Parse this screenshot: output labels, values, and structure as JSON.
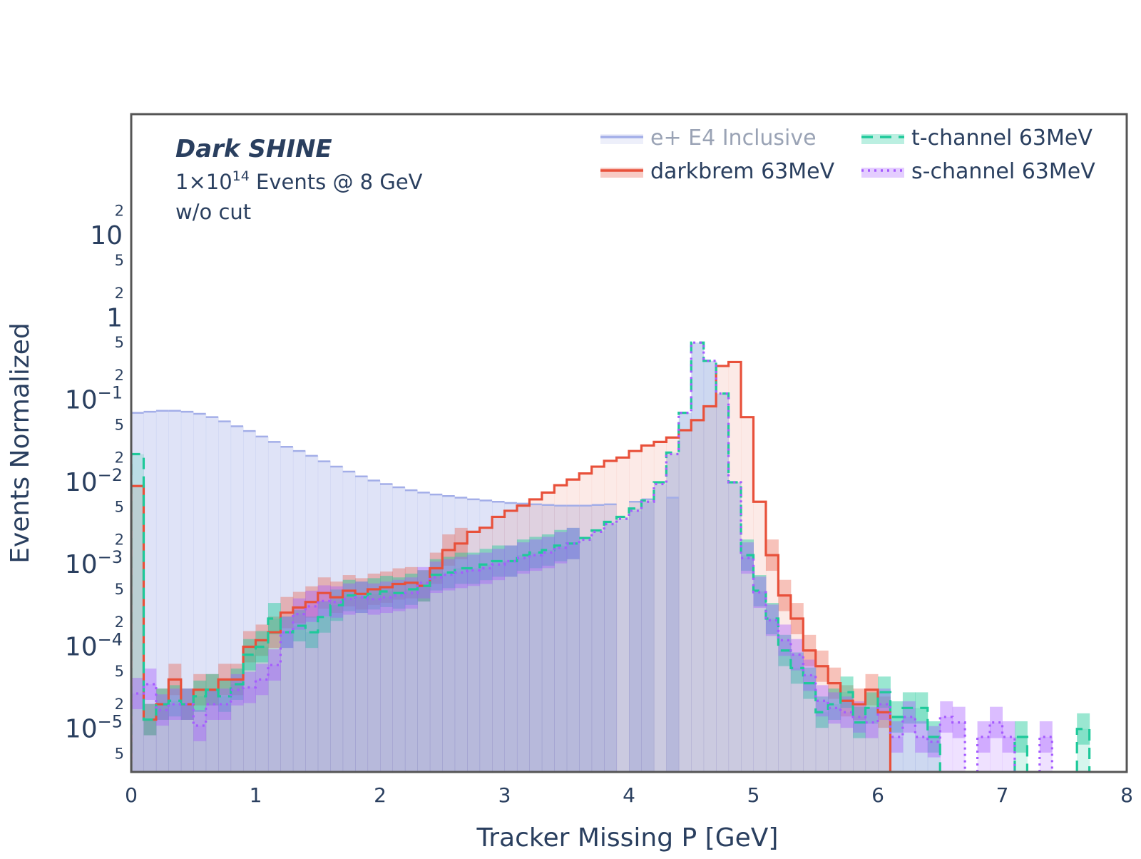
{
  "chart_data": {
    "type": "histogram",
    "xlabel": "Tracker Missing P [GeV]",
    "ylabel": "Events Normalized",
    "xlim": [
      0,
      8
    ],
    "ylim": [
      3e-06,
      300
    ],
    "yscale": "log",
    "bin_width": 0.1,
    "x_ticks": [
      "0",
      "1",
      "2",
      "3",
      "4",
      "5",
      "6",
      "7",
      "8"
    ],
    "y_ticks": [
      {
        "v": 1e-05,
        "label": "10",
        "exp": "−5"
      },
      {
        "v": 0.0001,
        "label": "10",
        "exp": "−4"
      },
      {
        "v": 0.001,
        "label": "10",
        "exp": "−3"
      },
      {
        "v": 0.01,
        "label": "10",
        "exp": "−2"
      },
      {
        "v": 0.1,
        "label": "10",
        "exp": "−1"
      },
      {
        "v": 1,
        "label": "1",
        "exp": ""
      },
      {
        "v": 10,
        "label": "10",
        "exp": ""
      }
    ],
    "y_minor_ticks": [
      {
        "v": 5e-06,
        "label": "5"
      },
      {
        "v": 2e-05,
        "label": "2"
      },
      {
        "v": 5e-05,
        "label": "5"
      },
      {
        "v": 0.0002,
        "label": "2"
      },
      {
        "v": 0.0005,
        "label": "5"
      },
      {
        "v": 0.002,
        "label": "2"
      },
      {
        "v": 0.005,
        "label": "5"
      },
      {
        "v": 0.02,
        "label": "2"
      },
      {
        "v": 0.05,
        "label": "5"
      },
      {
        "v": 0.2,
        "label": "2"
      },
      {
        "v": 0.5,
        "label": "5"
      },
      {
        "v": 2,
        "label": "2"
      },
      {
        "v": 5,
        "label": "5"
      },
      {
        "v": 20,
        "label": "2"
      }
    ],
    "annotation": {
      "title": "Dark SHINE",
      "line1_prefix": "1×10",
      "line1_exp": "14",
      "line1_suffix": " Events @ 8 GeV",
      "line2": "w/o cut"
    },
    "legend_position": "top-right",
    "series": [
      {
        "name": "e+ E4 Inclusive",
        "color": "#a3aee8",
        "style": "solid",
        "values": [
          0.07,
          0.072,
          0.074,
          0.074,
          0.072,
          0.068,
          0.062,
          0.055,
          0.048,
          0.042,
          0.036,
          0.031,
          0.027,
          0.024,
          0.021,
          0.018,
          0.0155,
          0.0135,
          0.0118,
          0.0105,
          0.0095,
          0.0087,
          0.008,
          0.0075,
          0.0071,
          0.0068,
          0.0065,
          0.0062,
          0.006,
          0.0058,
          0.0056,
          0.0055,
          0.0054,
          0.0053,
          0.0052,
          0.0052,
          0.0052,
          0.0053,
          0.0054,
          null,
          0.0058,
          0.0062,
          null,
          0.0065,
          null,
          null,
          null,
          null,
          null,
          null,
          null,
          null,
          null,
          null,
          null,
          null,
          null,
          null,
          null,
          null,
          null,
          null,
          null,
          null,
          null,
          null,
          null,
          null,
          null,
          null,
          null,
          null,
          null,
          null,
          null,
          null,
          null,
          null,
          null,
          null
        ]
      },
      {
        "name": "darkbrem 63MeV",
        "color": "#e8503a",
        "style": "solid",
        "values": [
          0.009,
          1.3e-05,
          2e-05,
          4e-05,
          2e-05,
          3e-05,
          3e-05,
          4e-05,
          4e-05,
          0.0001,
          0.00012,
          0.00015,
          0.00026,
          0.0003,
          0.00035,
          0.00045,
          0.0004,
          0.00048,
          0.00044,
          0.0005,
          0.00053,
          0.00058,
          0.0006,
          0.00055,
          0.0009,
          0.0015,
          0.0018,
          0.0025,
          0.0028,
          0.0038,
          0.0045,
          0.0052,
          0.0062,
          0.0075,
          0.0092,
          0.0108,
          0.0128,
          0.0155,
          0.0182,
          0.02,
          0.024,
          0.028,
          0.031,
          0.035,
          0.043,
          0.057,
          0.084,
          0.26,
          0.29,
          0.062,
          0.0058,
          0.0013,
          0.00042,
          0.00022,
          9e-05,
          5.8e-05,
          3.6e-05,
          2.2e-05,
          2e-05,
          3e-05,
          1.6e-05,
          null,
          null,
          null,
          null,
          null,
          null,
          null,
          null,
          null,
          null,
          null,
          null,
          null,
          null,
          null,
          null,
          null,
          null,
          null
        ]
      },
      {
        "name": "t-channel 63MeV",
        "color": "#1ec99a",
        "style": "dashed",
        "values": [
          0.022,
          1.3e-05,
          2e-05,
          2.2e-05,
          2e-05,
          2.5e-05,
          3e-05,
          2.5e-05,
          3.5e-05,
          8e-05,
          0.0001,
          0.00022,
          0.00015,
          0.00018,
          0.00015,
          0.00023,
          0.00032,
          0.00042,
          0.0004,
          0.00044,
          0.00047,
          0.00045,
          0.0005,
          0.00055,
          0.00075,
          0.0008,
          0.0009,
          0.0009,
          0.001,
          0.0011,
          0.0011,
          0.0013,
          0.0014,
          0.0015,
          0.0017,
          0.0018,
          0.0021,
          0.0026,
          0.0033,
          0.0038,
          0.0048,
          0.006,
          0.01,
          0.023,
          0.07,
          0.5,
          0.3,
          0.12,
          0.01,
          0.0013,
          0.00048,
          0.00022,
          9e-05,
          5.5e-05,
          3.6e-05,
          1.6e-05,
          2e-05,
          2.8e-05,
          1.2e-05,
          1.8e-05,
          2.8e-05,
          1.4e-05,
          1.8e-05,
          1.8e-05,
          8e-06,
          null,
          null,
          null,
          null,
          null,
          null,
          8e-06,
          null,
          null,
          null,
          null,
          1e-05,
          null,
          null,
          null
        ]
      },
      {
        "name": "s-channel 63MeV",
        "color": "#a55bff",
        "style": "dotted",
        "values": [
          2.7e-05,
          3.5e-05,
          1.7e-05,
          2e-05,
          2e-05,
          1.1e-05,
          2e-05,
          2e-05,
          3e-05,
          3.2e-05,
          4e-05,
          6e-05,
          0.00015,
          0.00025,
          0.00031,
          0.00036,
          0.00035,
          0.00038,
          0.0004,
          0.00038,
          0.0004,
          0.00042,
          0.00045,
          0.0006,
          0.0007,
          0.00075,
          0.0008,
          0.00085,
          0.0009,
          0.001,
          0.0011,
          0.0012,
          0.0013,
          0.0014,
          0.0016,
          0.0018,
          0.002,
          0.0025,
          0.0031,
          0.0036,
          0.0045,
          0.0058,
          0.0095,
          0.022,
          0.07,
          0.5,
          0.3,
          0.12,
          0.01,
          0.0012,
          0.00046,
          0.00021,
          0.00012,
          8e-05,
          4.5e-05,
          2.2e-05,
          1.8e-05,
          1.6e-05,
          1.4e-05,
          1.2e-05,
          2e-05,
          8e-06,
          1.4e-05,
          8e-06,
          7e-06,
          1.4e-05,
          1.2e-05,
          null,
          8e-06,
          1.2e-05,
          8e-06,
          null,
          null,
          8e-06,
          null,
          null,
          null,
          null,
          null,
          null
        ]
      }
    ]
  }
}
